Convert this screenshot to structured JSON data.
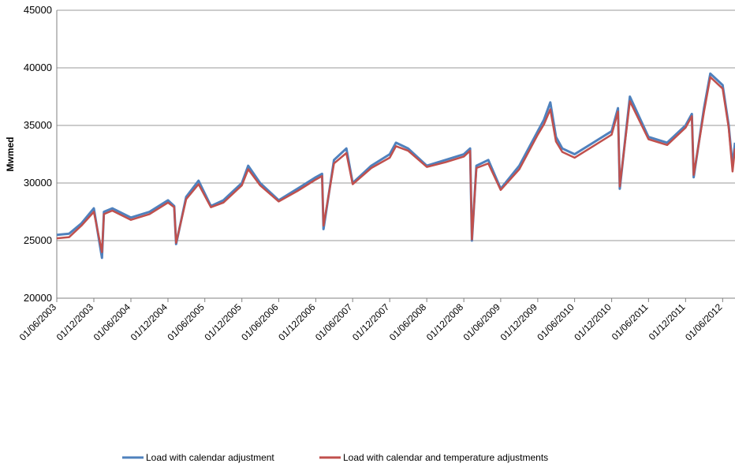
{
  "chart_data": {
    "type": "line",
    "title": "",
    "xlabel": "",
    "ylabel": "Mwmed",
    "ylim": [
      20000,
      45000
    ],
    "xlim": [
      "2003-06-01",
      "2012-08-01"
    ],
    "yticks": [
      "20000",
      "25000",
      "30000",
      "35000",
      "40000",
      "45000"
    ],
    "xticks": [
      "01/06/2003",
      "01/12/2003",
      "01/06/2004",
      "01/12/2004",
      "01/06/2005",
      "01/12/2005",
      "01/06/2006",
      "01/12/2006",
      "01/06/2007",
      "01/12/2007",
      "01/06/2008",
      "01/12/2008",
      "01/06/2009",
      "01/12/2009",
      "01/06/2010",
      "01/12/2010",
      "01/06/2011",
      "01/12/2011",
      "01/06/2012"
    ],
    "grid": "horizontal",
    "legend_position": "bottom",
    "series": [
      {
        "name": "Load with calendar adjustment",
        "color": "#4F81BD",
        "x": [
          "2003-06-01",
          "2003-08-01",
          "2003-10-01",
          "2003-12-01",
          "2004-01-10",
          "2004-01-20",
          "2004-03-01",
          "2004-06-01",
          "2004-09-01",
          "2004-12-01",
          "2005-01-01",
          "2005-01-10",
          "2005-03-01",
          "2005-05-01",
          "2005-07-01",
          "2005-09-01",
          "2005-12-01",
          "2006-01-01",
          "2006-03-01",
          "2006-06-01",
          "2006-09-01",
          "2006-12-01",
          "2007-01-01",
          "2007-01-08",
          "2007-03-01",
          "2007-05-01",
          "2007-06-01",
          "2007-09-01",
          "2007-12-01",
          "2008-01-01",
          "2008-03-01",
          "2008-06-01",
          "2008-09-01",
          "2008-12-01",
          "2009-01-01",
          "2009-01-10",
          "2009-02-01",
          "2009-04-01",
          "2009-06-01",
          "2009-09-01",
          "2009-12-01",
          "2010-01-01",
          "2010-02-01",
          "2010-03-01",
          "2010-04-01",
          "2010-06-01",
          "2010-09-01",
          "2010-12-01",
          "2011-01-01",
          "2011-01-10",
          "2011-03-01",
          "2011-06-01",
          "2011-09-01",
          "2011-12-01",
          "2012-01-01",
          "2012-01-10",
          "2012-03-01",
          "2012-04-01",
          "2012-06-01",
          "2012-07-01",
          "2012-07-20",
          "2012-08-01"
        ],
        "values": [
          25500,
          25600,
          26500,
          27800,
          23500,
          27500,
          27800,
          27000,
          27500,
          28500,
          28000,
          24700,
          28800,
          30200,
          28000,
          28500,
          30000,
          31500,
          30000,
          28500,
          29500,
          30500,
          30800,
          26000,
          32000,
          33000,
          30000,
          31500,
          32500,
          33500,
          33000,
          31500,
          32000,
          32500,
          33000,
          25000,
          31500,
          32000,
          29500,
          31500,
          34500,
          35500,
          37000,
          34000,
          33000,
          32500,
          33500,
          34500,
          36500,
          29500,
          37500,
          34000,
          33500,
          35000,
          36000,
          30500,
          36500,
          39500,
          38500,
          35000,
          31500,
          33500
        ]
      },
      {
        "name": "Load with calendar and temperature adjustments",
        "color": "#C0504D",
        "x": [
          "2003-06-01",
          "2003-08-01",
          "2003-10-01",
          "2003-12-01",
          "2004-01-10",
          "2004-01-20",
          "2004-03-01",
          "2004-06-01",
          "2004-09-01",
          "2004-12-01",
          "2005-01-01",
          "2005-01-10",
          "2005-03-01",
          "2005-05-01",
          "2005-07-01",
          "2005-09-01",
          "2005-12-01",
          "2006-01-01",
          "2006-03-01",
          "2006-06-01",
          "2006-09-01",
          "2006-12-01",
          "2007-01-01",
          "2007-01-08",
          "2007-03-01",
          "2007-05-01",
          "2007-06-01",
          "2007-09-01",
          "2007-12-01",
          "2008-01-01",
          "2008-03-01",
          "2008-06-01",
          "2008-09-01",
          "2008-12-01",
          "2009-01-01",
          "2009-01-10",
          "2009-02-01",
          "2009-04-01",
          "2009-06-01",
          "2009-09-01",
          "2009-12-01",
          "2010-01-01",
          "2010-02-01",
          "2010-03-01",
          "2010-04-01",
          "2010-06-01",
          "2010-09-01",
          "2010-12-01",
          "2011-01-01",
          "2011-01-10",
          "2011-03-01",
          "2011-06-01",
          "2011-09-01",
          "2011-12-01",
          "2012-01-01",
          "2012-01-10",
          "2012-03-01",
          "2012-04-01",
          "2012-06-01",
          "2012-07-01",
          "2012-07-20",
          "2012-08-01"
        ],
        "values": [
          25200,
          25300,
          26300,
          27500,
          24000,
          27300,
          27600,
          26800,
          27300,
          28300,
          27900,
          24800,
          28600,
          29900,
          27900,
          28300,
          29800,
          31200,
          29800,
          28400,
          29300,
          30300,
          30600,
          26300,
          31700,
          32600,
          29900,
          31300,
          32200,
          33200,
          32800,
          31400,
          31800,
          32300,
          32800,
          25100,
          31300,
          31700,
          29400,
          31200,
          34200,
          35100,
          36400,
          33600,
          32700,
          32200,
          33200,
          34200,
          36200,
          29700,
          37100,
          33800,
          33300,
          34800,
          35800,
          30700,
          36200,
          39200,
          38200,
          34800,
          31000,
          33000
        ]
      }
    ]
  }
}
